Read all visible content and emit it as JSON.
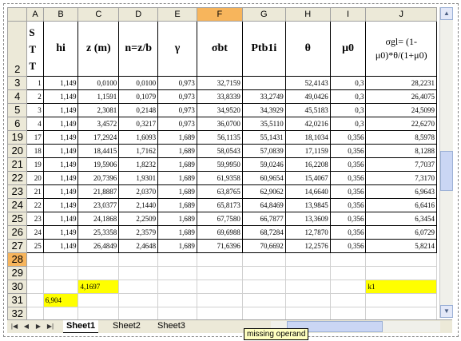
{
  "columns": [
    "A",
    "B",
    "C",
    "D",
    "E",
    "F",
    "G",
    "H",
    "I",
    "J"
  ],
  "header_row": {
    "row_num": "2",
    "stt": "S T T",
    "hi": "hi",
    "z": "z (m)",
    "n": "n=z/b",
    "gamma": "γ",
    "sigma_bt": "σbt",
    "p": "Ptb1i",
    "theta": "θ",
    "mu": "μ0",
    "j": "σgl= (1-μ0)*θ/(1+μ0)"
  },
  "rows": [
    {
      "r": "3",
      "a": "1",
      "b": "1,149",
      "c": "0,0100",
      "d": "0,0100",
      "e": "0,973",
      "f": "32,7159",
      "g": "",
      "h": "52,4143",
      "i": "0,3",
      "j": "28,2231"
    },
    {
      "r": "4",
      "a": "2",
      "b": "1,149",
      "c": "1,1591",
      "d": "0,1079",
      "e": "0,973",
      "f": "33,8339",
      "g": "33,2749",
      "h": "49,0426",
      "i": "0,3",
      "j": "26,4075"
    },
    {
      "r": "5",
      "a": "3",
      "b": "1,149",
      "c": "2,3081",
      "d": "0,2148",
      "e": "0,973",
      "f": "34,9520",
      "g": "34,3929",
      "h": "45,5183",
      "i": "0,3",
      "j": "24,5099"
    },
    {
      "r": "6",
      "a": "4",
      "b": "1,149",
      "c": "3,4572",
      "d": "0,3217",
      "e": "0,973",
      "f": "36,0700",
      "g": "35,5110",
      "h": "42,0216",
      "i": "0,3",
      "j": "22,6270"
    },
    {
      "r": "19",
      "a": "17",
      "b": "1,149",
      "c": "17,2924",
      "d": "1,6093",
      "e": "1,689",
      "f": "56,1135",
      "g": "55,1431",
      "h": "18,1034",
      "i": "0,356",
      "j": "8,5978"
    },
    {
      "r": "20",
      "a": "18",
      "b": "1,149",
      "c": "18,4415",
      "d": "1,7162",
      "e": "1,689",
      "f": "58,0543",
      "g": "57,0839",
      "h": "17,1159",
      "i": "0,356",
      "j": "8,1288"
    },
    {
      "r": "21",
      "a": "19",
      "b": "1,149",
      "c": "19,5906",
      "d": "1,8232",
      "e": "1,689",
      "f": "59,9950",
      "g": "59,0246",
      "h": "16,2208",
      "i": "0,356",
      "j": "7,7037"
    },
    {
      "r": "22",
      "a": "20",
      "b": "1,149",
      "c": "20,7396",
      "d": "1,9301",
      "e": "1,689",
      "f": "61,9358",
      "g": "60,9654",
      "h": "15,4067",
      "i": "0,356",
      "j": "7,3170"
    },
    {
      "r": "23",
      "a": "21",
      "b": "1,149",
      "c": "21,8887",
      "d": "2,0370",
      "e": "1,689",
      "f": "63,8765",
      "g": "62,9062",
      "h": "14,6640",
      "i": "0,356",
      "j": "6,9643"
    },
    {
      "r": "24",
      "a": "22",
      "b": "1,149",
      "c": "23,0377",
      "d": "2,1440",
      "e": "1,689",
      "f": "65,8173",
      "g": "64,8469",
      "h": "13,9845",
      "i": "0,356",
      "j": "6,6416"
    },
    {
      "r": "25",
      "a": "23",
      "b": "1,149",
      "c": "24,1868",
      "d": "2,2509",
      "e": "1,689",
      "f": "67,7580",
      "g": "66,7877",
      "h": "13,3609",
      "i": "0,356",
      "j": "6,3454"
    },
    {
      "r": "26",
      "a": "24",
      "b": "1,149",
      "c": "25,3358",
      "d": "2,3579",
      "e": "1,689",
      "f": "69,6988",
      "g": "68,7284",
      "h": "12,7870",
      "i": "0,356",
      "j": "6,0729"
    },
    {
      "r": "27",
      "a": "25",
      "b": "1,149",
      "c": "26,4849",
      "d": "2,4648",
      "e": "1,689",
      "f": "71,6396",
      "g": "70,6692",
      "h": "12,2576",
      "i": "0,356",
      "j": "5,8214"
    }
  ],
  "extra_rows": {
    "r28": "28",
    "r29": "29",
    "r30": "30",
    "r31": "31",
    "r32": "32",
    "c30_value": "4,1697",
    "j30_value": "k1",
    "b31_value": "6,904"
  },
  "sheet_tabs": [
    "Sheet1",
    "Sheet2",
    "Sheet3"
  ],
  "tooltip": "missing operand",
  "colors": {
    "highlight": "#ffff00",
    "selected_header": "#f7b55c",
    "header_bg": "#ece9d8"
  }
}
